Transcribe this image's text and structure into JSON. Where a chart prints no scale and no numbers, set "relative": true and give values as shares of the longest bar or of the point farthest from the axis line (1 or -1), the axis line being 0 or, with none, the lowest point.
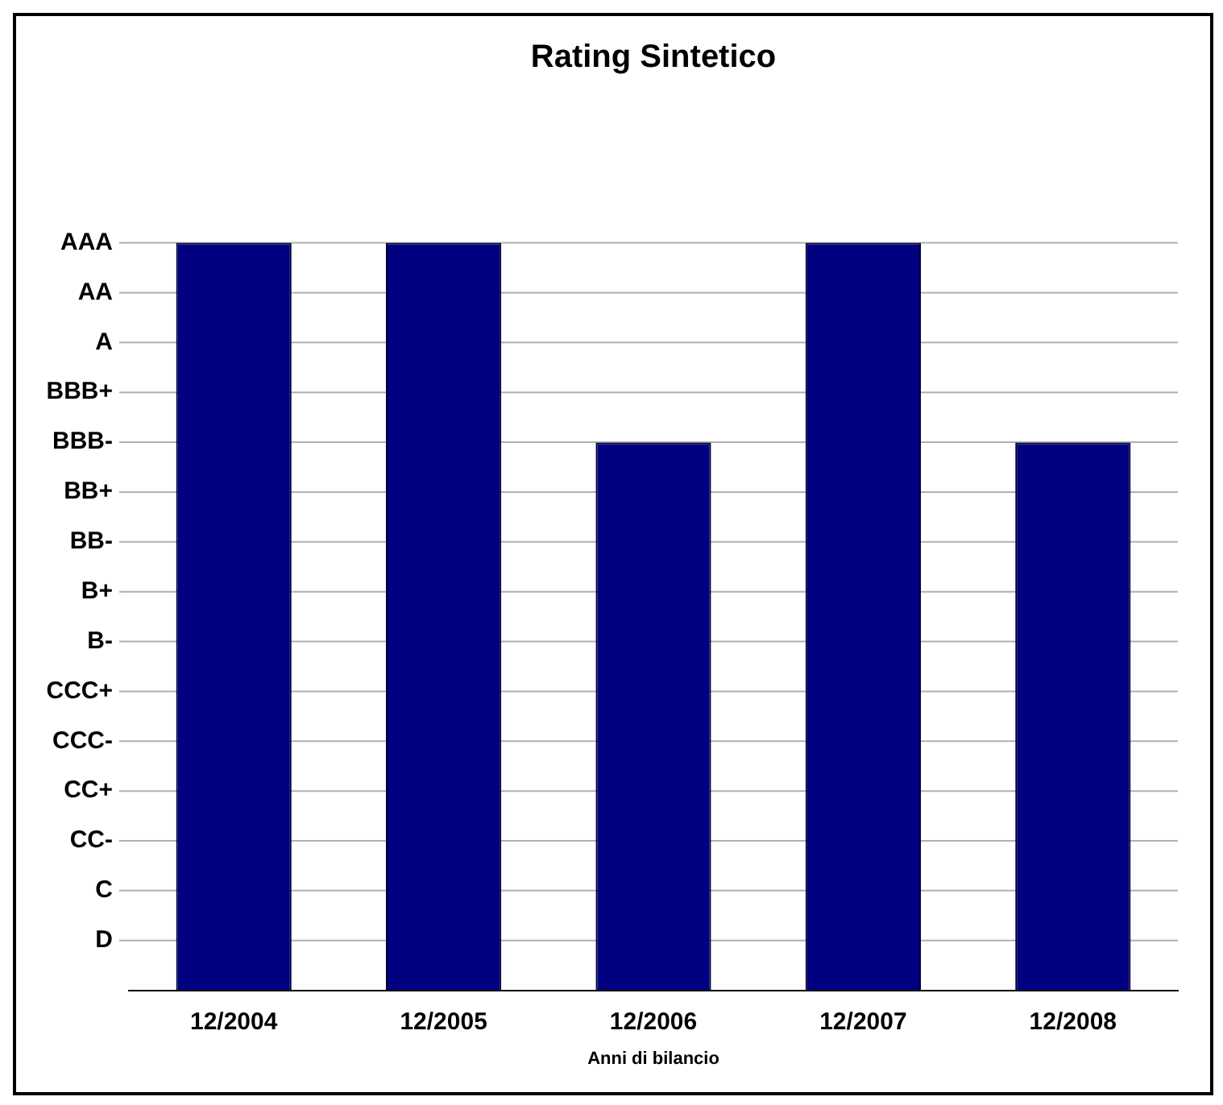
{
  "chart_data": {
    "type": "bar",
    "title": "Rating Sintetico",
    "xlabel": "Anni di bilancio",
    "categories": [
      "12/2004",
      "12/2005",
      "12/2006",
      "12/2007",
      "12/2008"
    ],
    "values": [
      1,
      1,
      0.733,
      1,
      0.733
    ],
    "color": "#000080",
    "relative": true,
    "annotations": [
      "D",
      "C",
      "CC-",
      "CC+",
      "CCC-",
      "CCC+",
      "B-",
      "B+",
      "BB-",
      "BB+",
      "BBB-",
      "BBB+",
      "A",
      "AA",
      "AAA"
    ],
    "grid": "y",
    "legend": false
  }
}
